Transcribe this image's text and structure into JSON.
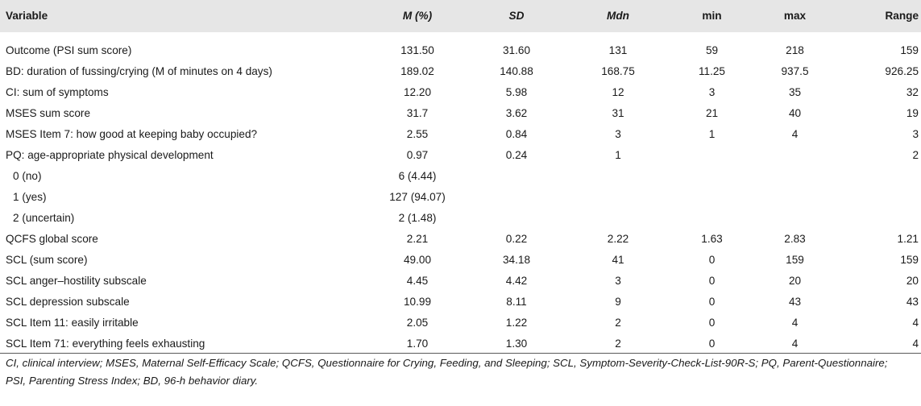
{
  "table": {
    "headers": {
      "variable": "Variable",
      "m": "M (%)",
      "sd": "SD",
      "mdn": "Mdn",
      "min": "min",
      "max": "max",
      "range": "Range"
    },
    "rows": [
      {
        "variable": "Outcome (PSI sum score)",
        "m": "131.50",
        "sd": "31.60",
        "mdn": "131",
        "min": "59",
        "max": "218",
        "range": "159"
      },
      {
        "variable": "BD: duration of fussing/crying (M of minutes on 4 days)",
        "m": "189.02",
        "sd": "140.88",
        "mdn": "168.75",
        "min": "11.25",
        "max": "937.5",
        "range": "926.25"
      },
      {
        "variable": "CI: sum of symptoms",
        "m": "12.20",
        "sd": "5.98",
        "mdn": "12",
        "min": "3",
        "max": "35",
        "range": "32"
      },
      {
        "variable": "MSES sum score",
        "m": "31.7",
        "sd": "3.62",
        "mdn": "31",
        "min": "21",
        "max": "40",
        "range": "19"
      },
      {
        "variable": "MSES Item 7: how good at keeping baby occupied?",
        "m": "2.55",
        "sd": "0.84",
        "mdn": "3",
        "min": "1",
        "max": "4",
        "range": "3"
      },
      {
        "variable": "PQ: age-appropriate physical development",
        "m": "0.97",
        "sd": "0.24",
        "mdn": "1",
        "min": "",
        "max": "",
        "range": "2"
      },
      {
        "variable": "0 (no)",
        "m": "6 (4.44)",
        "sd": "",
        "mdn": "",
        "min": "",
        "max": "",
        "range": ""
      },
      {
        "variable": "1 (yes)",
        "m": "127 (94.07)",
        "sd": "",
        "mdn": "",
        "min": "",
        "max": "",
        "range": ""
      },
      {
        "variable": "2 (uncertain)",
        "m": "2 (1.48)",
        "sd": "",
        "mdn": "",
        "min": "",
        "max": "",
        "range": ""
      },
      {
        "variable": "QCFS global score",
        "m": "2.21",
        "sd": "0.22",
        "mdn": "2.22",
        "min": "1.63",
        "max": "2.83",
        "range": "1.21"
      },
      {
        "variable": "SCL (sum score)",
        "m": "49.00",
        "sd": "34.18",
        "mdn": "41",
        "min": "0",
        "max": "159",
        "range": "159"
      },
      {
        "variable": "SCL anger–hostility subscale",
        "m": "4.45",
        "sd": "4.42",
        "mdn": "3",
        "min": "0",
        "max": "20",
        "range": "20"
      },
      {
        "variable": "SCL depression subscale",
        "m": "10.99",
        "sd": "8.11",
        "mdn": "9",
        "min": "0",
        "max": "43",
        "range": "43"
      },
      {
        "variable": "SCL Item 11: easily irritable",
        "m": "2.05",
        "sd": "1.22",
        "mdn": "2",
        "min": "0",
        "max": "4",
        "range": "4"
      },
      {
        "variable": "SCL Item 71: everything feels exhausting",
        "m": "1.70",
        "sd": "1.30",
        "mdn": "2",
        "min": "0",
        "max": "4",
        "range": "4"
      }
    ]
  },
  "footnote": {
    "line1": "CI, clinical interview; MSES, Maternal Self-Efficacy Scale; QCFS, Questionnaire for Crying, Feeding, and Sleeping; SCL, Symptom-Severity-Check-List-90R-S; PQ, Parent-Questionnaire;",
    "line2": "PSI, Parenting Stress Index; BD, 96-h behavior diary."
  }
}
